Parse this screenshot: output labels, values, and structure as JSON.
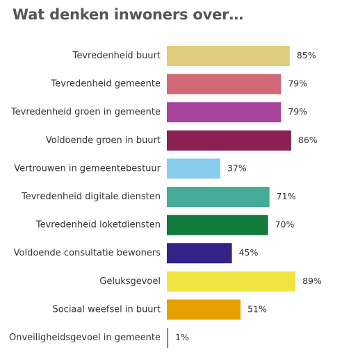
{
  "title": "Wat denken inwoners over…",
  "chart_data": {
    "type": "bar",
    "orientation": "horizontal",
    "title": "Wat denken inwoners over…",
    "xlim": [
      0,
      100
    ],
    "grid": false,
    "categories": [
      "Tevredenheid buurt",
      "Tevredenheid gemeente",
      "Tevredenheid groen in gemeente",
      "Voldoende groen in buurt",
      "Vertrouwen in gemeentebestuur",
      "Tevredenheid digitale diensten",
      "Tevredenheid loketdiensten",
      "Voldoende consultatie bewoners",
      "Geluksgevoel",
      "Sociaal weefsel in buurt",
      "Onveiligheidsgevoel in gemeente"
    ],
    "values": [
      85,
      79,
      79,
      86,
      37,
      71,
      70,
      45,
      89,
      51,
      1
    ],
    "value_labels": [
      "85%",
      "79%",
      "79%",
      "86%",
      "37%",
      "71%",
      "70%",
      "45%",
      "89%",
      "51%",
      "1%"
    ],
    "colors": [
      "#e0cc7c",
      "#d06878",
      "#a8449c",
      "#8a1f52",
      "#88ccee",
      "#45aa98",
      "#127a3a",
      "#332288",
      "#f0e442",
      "#e5a000",
      "#c87c2e"
    ]
  }
}
